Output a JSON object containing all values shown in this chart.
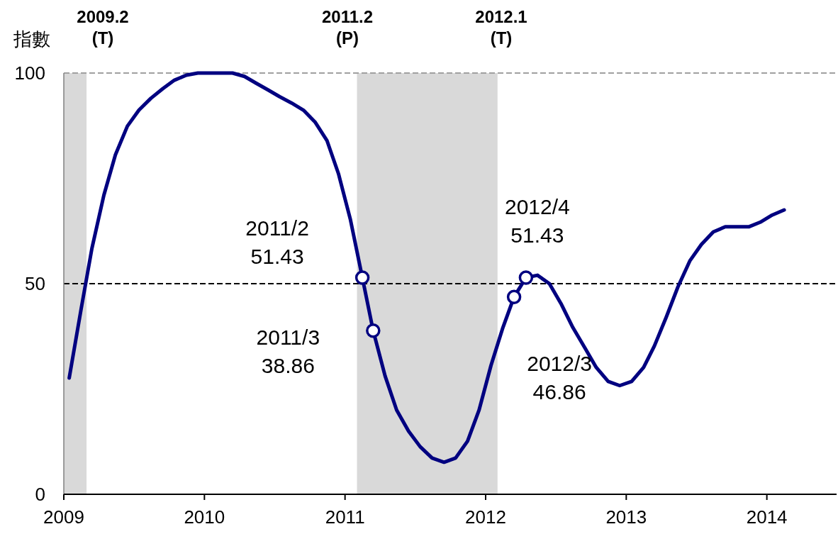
{
  "chart_data": {
    "type": "line",
    "ylabel": "指數",
    "x": [
      "2009-01-15",
      "2009-02-15",
      "2009-03-15",
      "2009-04-15",
      "2009-05-15",
      "2009-06-15",
      "2009-07-15",
      "2009-08-15",
      "2009-09-15",
      "2009-10-15",
      "2009-11-15",
      "2009-12-15",
      "2010-01-15",
      "2010-02-15",
      "2010-03-15",
      "2010-04-15",
      "2010-05-15",
      "2010-06-15",
      "2010-07-15",
      "2010-08-15",
      "2010-09-15",
      "2010-10-15",
      "2010-11-15",
      "2010-12-15",
      "2011-01-15",
      "2011-02-15",
      "2011-03-15",
      "2011-04-15",
      "2011-05-15",
      "2011-06-15",
      "2011-07-15",
      "2011-08-15",
      "2011-09-15",
      "2011-10-15",
      "2011-11-15",
      "2011-12-15",
      "2012-01-15",
      "2012-02-15",
      "2012-03-15",
      "2012-04-15",
      "2012-05-15",
      "2012-06-15",
      "2012-07-15",
      "2012-08-15",
      "2012-09-15",
      "2012-10-15",
      "2012-11-15",
      "2012-12-15",
      "2013-01-15",
      "2013-02-15",
      "2013-03-15",
      "2013-04-15",
      "2013-05-15",
      "2013-06-15",
      "2013-07-15",
      "2013-08-15",
      "2013-09-15",
      "2013-10-15",
      "2013-11-15",
      "2013-12-15",
      "2014-01-15",
      "2014-02-15"
    ],
    "series": [
      {
        "color": "#000080",
        "values": [
          27.6,
          44,
          58.4,
          71,
          80.6,
          87.4,
          91.2,
          94,
          96.3,
          98.3,
          99.5,
          100,
          100,
          100,
          100,
          99.2,
          97.6,
          96,
          94.4,
          92.9,
          91.2,
          88.4,
          84,
          76.1,
          65.2,
          51.43,
          38.86,
          28.1,
          20,
          15,
          11.3,
          8.6,
          7.6,
          8.6,
          12.6,
          20,
          30.6,
          39.6,
          46.86,
          51.43,
          52,
          50,
          45.3,
          39.6,
          34.8,
          30.1,
          26.8,
          25.8,
          26.8,
          30.1,
          35.2,
          42.1,
          49.2,
          55.4,
          59.3,
          62.3,
          63.5,
          63.5,
          63.5,
          64.6,
          66.3,
          67.5
        ]
      },
      {
        "type": "scatter",
        "color": "#000080",
        "marker": "circle",
        "x": [
          "2011-02-15",
          "2011-03-15",
          "2012-03-15",
          "2012-04-15"
        ],
        "values": [
          51.43,
          38.86,
          46.86,
          51.43
        ]
      }
    ],
    "xlim": [
      "2009-01-01",
      "2014-07-01"
    ],
    "xticks": [
      "2009",
      "2010",
      "2011",
      "2012",
      "2013",
      "2014"
    ],
    "ylim": [
      0,
      100
    ],
    "yticks": [
      0,
      50,
      100
    ],
    "bands": [
      {
        "axis": "x",
        "from": "2009-01-01",
        "to": "2009-03-01",
        "color": "#d9d9d9"
      },
      {
        "axis": "x",
        "from": "2011-02-01",
        "to": "2012-02-01",
        "color": "#d9d9d9"
      }
    ],
    "ref_lines": [
      {
        "axis": "y",
        "value": 50,
        "color": "#000000",
        "line_style": "dashed"
      },
      {
        "axis": "y",
        "value": 100,
        "color": "#a0a0a0",
        "line_style": "dashed"
      }
    ],
    "annotations": [
      "2009.2\n(T)",
      "2011.2\n(P)",
      "2012.1\n(T)",
      {
        "text": "2011/2\n51.43",
        "x": "2011-02-15",
        "y": 51.43
      },
      {
        "text": "2011/3\n38.86",
        "x": "2011-03-15",
        "y": 38.86
      },
      {
        "text": "2012/3\n46.86",
        "x": "2012-03-15",
        "y": 46.86
      },
      {
        "text": "2012/4\n51.43",
        "x": "2012-04-15",
        "y": 51.43
      }
    ]
  }
}
